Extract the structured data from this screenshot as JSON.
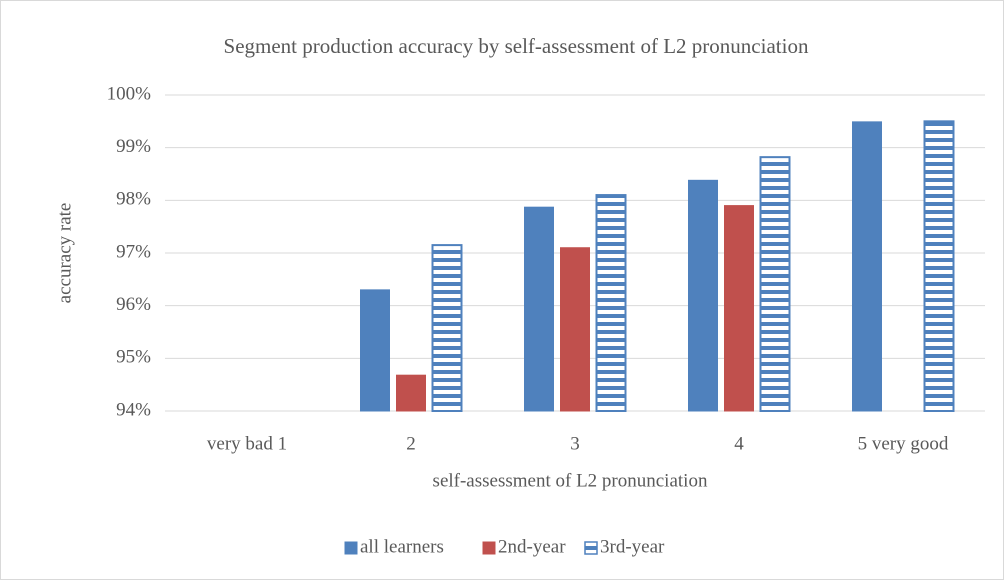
{
  "chart_data": {
    "type": "bar",
    "title": "Segment production accuracy by self-assessment of L2 pronunciation",
    "x_label": "self-assessment of L2 pronunciation",
    "y_label": "accuracy rate",
    "categories": [
      "very bad 1",
      "2",
      "3",
      "4",
      "5 very good"
    ],
    "series": [
      {
        "name": "all learners",
        "color": "#4f81bd",
        "values": [
          94,
          96.3,
          97.87,
          98.38,
          99.49
        ]
      },
      {
        "name": "2nd-year",
        "color": "#c0504d",
        "values": [
          94,
          94.68,
          97.1,
          97.9,
          94
        ]
      },
      {
        "name": "3rd-year",
        "color": "#4f81bd",
        "pattern": "horizontal-stripes",
        "values": [
          94,
          97.15,
          98.1,
          98.82,
          99.5
        ]
      }
    ],
    "ylim": [
      94,
      100
    ],
    "yticks": [
      {
        "value": 94,
        "label": "94%"
      },
      {
        "value": 95,
        "label": "95%"
      },
      {
        "value": 96,
        "label": "96%"
      },
      {
        "value": 97,
        "label": "97%"
      },
      {
        "value": 98,
        "label": "98%"
      },
      {
        "value": 99,
        "label": "99%"
      },
      {
        "value": 100,
        "label": "100%"
      }
    ],
    "grid": true,
    "legend": "bottom"
  }
}
